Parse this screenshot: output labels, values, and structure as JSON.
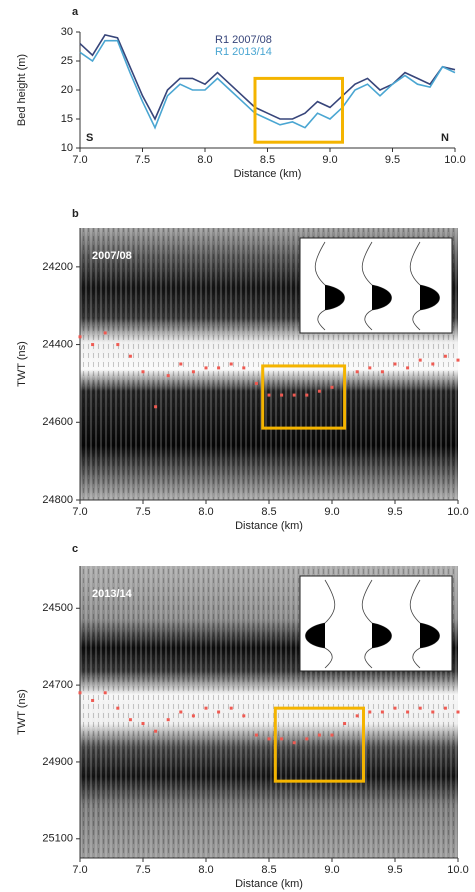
{
  "chart_data": [
    {
      "type": "line",
      "panel": "a",
      "x": [
        7.0,
        7.1,
        7.2,
        7.3,
        7.4,
        7.5,
        7.6,
        7.7,
        7.8,
        7.9,
        8.0,
        8.1,
        8.2,
        8.3,
        8.4,
        8.5,
        8.6,
        8.7,
        8.8,
        8.9,
        9.0,
        9.1,
        9.2,
        9.3,
        9.4,
        9.5,
        9.6,
        9.7,
        9.8,
        9.9,
        10.0
      ],
      "series": [
        {
          "name": "R1 2007/08",
          "color": "#37457a",
          "values": [
            28,
            26,
            29.5,
            29,
            24,
            19,
            15,
            20,
            22,
            22,
            21,
            23,
            21,
            19,
            17,
            16,
            15,
            15,
            16,
            18,
            17,
            19,
            21,
            22,
            20,
            21,
            23,
            22,
            21,
            24,
            23.5
          ]
        },
        {
          "name": "R1 2013/14",
          "color": "#4aa6d2",
          "values": [
            26.5,
            25,
            28.5,
            28.5,
            23,
            18,
            13.5,
            19,
            21,
            20,
            20,
            22,
            20,
            18,
            16,
            15,
            14,
            14.5,
            13.5,
            16,
            15,
            17,
            20,
            21,
            19,
            21,
            22.5,
            21,
            20.5,
            24,
            23
          ]
        }
      ],
      "xlim": [
        7.0,
        10.0
      ],
      "xticks": [
        {
          "value": 7.0,
          "label": "7.0"
        },
        {
          "value": 7.5,
          "label": "7.5"
        },
        {
          "value": 8.0,
          "label": "8.0"
        },
        {
          "value": 8.5,
          "label": "8.5"
        },
        {
          "value": 9.0,
          "label": "9.0"
        },
        {
          "value": 9.5,
          "label": "9.5"
        },
        {
          "value": 10.0,
          "label": "10.0"
        }
      ],
      "ylim": [
        10,
        30
      ],
      "yticks": [
        10,
        15,
        20,
        25,
        30
      ],
      "x_label": "Distance (km)",
      "y_label": "Bed height (m)",
      "annotations": [
        "S",
        "N"
      ],
      "highlight": {
        "x": [
          8.4,
          9.1
        ],
        "y": [
          11,
          22
        ],
        "color": "#f4b400"
      }
    },
    {
      "type": "radargram",
      "panel": "b",
      "label": "2007/08",
      "x": [
        7.0,
        7.1,
        7.2,
        7.3,
        7.4,
        7.5,
        7.6,
        7.7,
        7.8,
        7.9,
        8.0,
        8.1,
        8.2,
        8.3,
        8.4,
        8.5,
        8.6,
        8.7,
        8.8,
        8.9,
        9.0,
        9.1,
        9.2,
        9.3,
        9.4,
        9.5,
        9.6,
        9.7,
        9.8,
        9.9,
        10.0
      ],
      "series": [
        {
          "color": "#ef5a52",
          "values": [
            24380,
            24400,
            24370,
            24400,
            24430,
            24470,
            24560,
            24480,
            24450,
            24470,
            24460,
            24460,
            24450,
            24460,
            24500,
            24530,
            24530,
            24530,
            24530,
            24520,
            24510,
            24500,
            24470,
            24460,
            24470,
            24450,
            24460,
            24440,
            24450,
            24430,
            24440
          ]
        }
      ],
      "xlim": [
        7.0,
        10.0
      ],
      "xticks": [
        {
          "value": 7.0,
          "label": "7.0"
        },
        {
          "value": 7.5,
          "label": "7.5"
        },
        {
          "value": 8.0,
          "label": "8.0"
        },
        {
          "value": 8.5,
          "label": "8.5"
        },
        {
          "value": 9.0,
          "label": "9.0"
        },
        {
          "value": 9.5,
          "label": "9.5"
        },
        {
          "value": 10.0,
          "label": "10.0"
        }
      ],
      "ylim": [
        24100,
        24800
      ],
      "y_inverted": true,
      "yticks": [
        24200,
        24400,
        24600,
        24800
      ],
      "x_label": "Distance (km)",
      "y_label": "TWT (ns)",
      "highlight": {
        "x": [
          8.45,
          9.1
        ],
        "y": [
          24455,
          24615
        ],
        "color": "#f4b400"
      }
    },
    {
      "type": "radargram",
      "panel": "c",
      "label": "2013/14",
      "x": [
        7.0,
        7.1,
        7.2,
        7.3,
        7.4,
        7.5,
        7.6,
        7.7,
        7.8,
        7.9,
        8.0,
        8.1,
        8.2,
        8.3,
        8.4,
        8.5,
        8.6,
        8.7,
        8.8,
        8.9,
        9.0,
        9.1,
        9.2,
        9.3,
        9.4,
        9.5,
        9.6,
        9.7,
        9.8,
        9.9,
        10.0
      ],
      "series": [
        {
          "color": "#ef5a52",
          "values": [
            24720,
            24740,
            24720,
            24760,
            24790,
            24800,
            24820,
            24790,
            24770,
            24780,
            24760,
            24770,
            24760,
            24780,
            24830,
            24840,
            24840,
            24850,
            24840,
            24830,
            24830,
            24800,
            24780,
            24770,
            24770,
            24760,
            24770,
            24760,
            24770,
            24760,
            24770
          ]
        }
      ],
      "xlim": [
        7.0,
        10.0
      ],
      "xticks": [
        {
          "value": 7.0,
          "label": "7.0"
        },
        {
          "value": 7.5,
          "label": "7.5"
        },
        {
          "value": 8.0,
          "label": "8.0"
        },
        {
          "value": 8.5,
          "label": "8.5"
        },
        {
          "value": 9.0,
          "label": "9.0"
        },
        {
          "value": 9.5,
          "label": "9.5"
        },
        {
          "value": 10.0,
          "label": "10.0"
        }
      ],
      "ylim": [
        24390,
        25150
      ],
      "y_inverted": true,
      "yticks": [
        24500,
        24700,
        24900,
        25100
      ],
      "x_label": "Distance (km)",
      "y_label": "TWT (ns)",
      "highlight": {
        "x": [
          8.55,
          9.25
        ],
        "y": [
          24760,
          24950
        ],
        "color": "#f4b400"
      }
    }
  ]
}
